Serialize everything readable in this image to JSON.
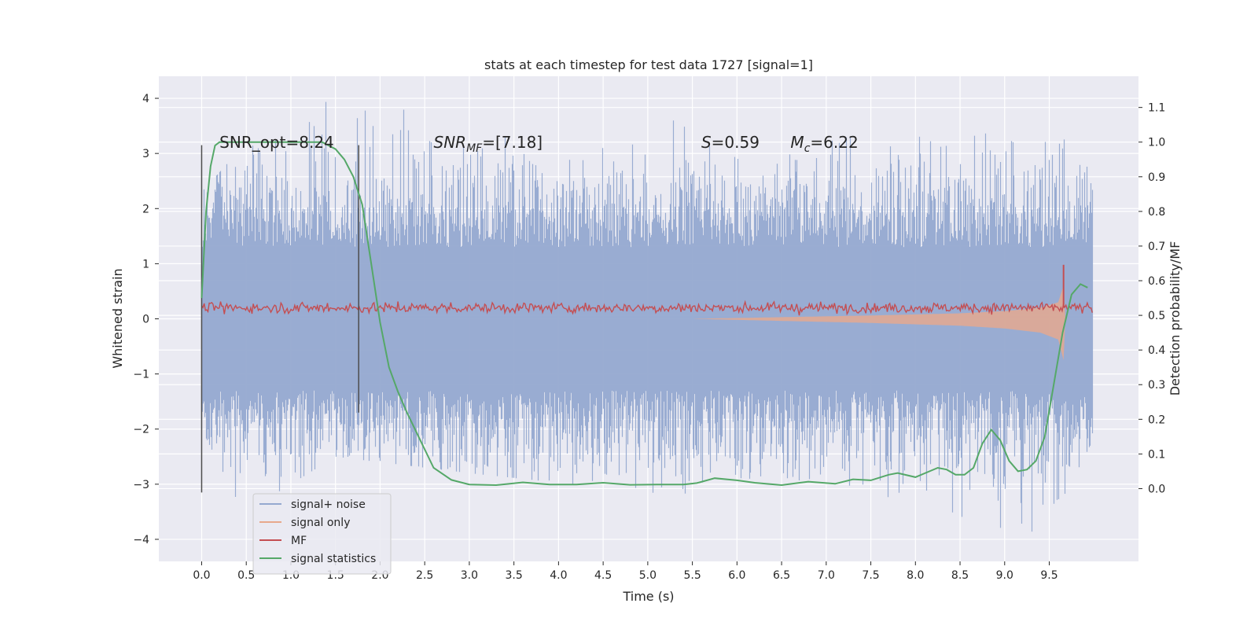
{
  "chart_data": {
    "type": "line",
    "title": "stats at each timestep for test data 1727 [signal=1]",
    "xlabel": "Time (s)",
    "ylabel": "Whitened strain",
    "y2label": "Detection probability/MF",
    "xlim": [
      -0.48,
      10.5
    ],
    "ylim": [
      -4.4,
      4.4
    ],
    "y2lim": [
      -0.21,
      1.19
    ],
    "xticks": [
      0.0,
      0.5,
      1.0,
      1.5,
      2.0,
      2.5,
      3.0,
      3.5,
      4.0,
      4.5,
      5.0,
      5.5,
      6.0,
      6.5,
      7.0,
      7.5,
      8.0,
      8.5,
      9.0,
      9.5
    ],
    "xtick_labels": [
      "0.0",
      "0.5",
      "1.0",
      "1.5",
      "2.0",
      "2.5",
      "3.0",
      "3.5",
      "4.0",
      "4.5",
      "5.0",
      "5.5",
      "6.0",
      "6.5",
      "7.0",
      "7.5",
      "8.0",
      "8.5",
      "9.0",
      "9.5"
    ],
    "yticks": [
      -4,
      -3,
      -2,
      -1,
      0,
      1,
      2,
      3,
      4
    ],
    "ytick_labels": [
      "−4",
      "−3",
      "−2",
      "−1",
      "0",
      "1",
      "2",
      "3",
      "4"
    ],
    "y2ticks": [
      0.0,
      0.1,
      0.2,
      0.3,
      0.4,
      0.5,
      0.6,
      0.7,
      0.8,
      0.9,
      1.0,
      1.1
    ],
    "y2tick_labels": [
      "0.0",
      "0.1",
      "0.2",
      "0.3",
      "0.4",
      "0.5",
      "0.6",
      "0.7",
      "0.8",
      "0.9",
      "1.0",
      "1.1"
    ],
    "grid": true,
    "legend_position": "lower-left",
    "legend": [
      {
        "label": "signal+ noise",
        "color": "#95a9d0"
      },
      {
        "label": "signal only",
        "color": "#e8a98c"
      },
      {
        "label": "MF",
        "color": "#c44e52"
      },
      {
        "label": "signal statistics",
        "color": "#55a868"
      }
    ],
    "annotations": [
      {
        "id": "snr-opt",
        "text": "SNR_opt=8.24",
        "x": 0.2,
        "y": 3.1
      },
      {
        "id": "snr-mf",
        "prefix": "SNR",
        "sub": "MF",
        "suffix": "=[7.18]",
        "x": 2.6,
        "y": 3.1
      },
      {
        "id": "s",
        "prefix": "S",
        "suffix": "=0.59",
        "x": 5.6,
        "y": 3.1
      },
      {
        "id": "mc",
        "prefix": "M",
        "sub": "c",
        "suffix": "=6.22",
        "x": 6.6,
        "y": 3.1
      }
    ],
    "vlines": [
      {
        "x": 0.0,
        "ymin": -3.15,
        "ymax": 3.15
      },
      {
        "x": 1.76,
        "ymin": -1.7,
        "ymax": 3.15
      }
    ],
    "series": [
      {
        "name": "signal+ noise",
        "kind": "noise_band",
        "color": "#95a9d0",
        "x_range": [
          0.0,
          9.99
        ],
        "typical_amplitude": 1.25,
        "upper_envelope": [
          [
            0.0,
            2.3
          ],
          [
            0.5,
            3.2
          ],
          [
            0.9,
            3.3
          ],
          [
            1.37,
            4.0
          ],
          [
            2.47,
            3.75
          ],
          [
            3.4,
            3.3
          ],
          [
            4.0,
            3.0
          ],
          [
            5.0,
            3.2
          ],
          [
            5.52,
            4.05
          ],
          [
            6.0,
            2.9
          ],
          [
            7.0,
            3.2
          ],
          [
            7.62,
            3.5
          ],
          [
            8.6,
            3.3
          ],
          [
            9.48,
            3.6
          ],
          [
            9.8,
            3.6
          ],
          [
            9.99,
            2.3
          ]
        ],
        "lower_envelope": [
          [
            0.0,
            -2.0
          ],
          [
            0.46,
            -3.5
          ],
          [
            0.8,
            -3.2
          ],
          [
            1.5,
            -2.5
          ],
          [
            3.0,
            -2.8
          ],
          [
            5.32,
            -3.2
          ],
          [
            6.0,
            -3.0
          ],
          [
            7.0,
            -2.9
          ],
          [
            8.35,
            -3.55
          ],
          [
            9.42,
            -4.0
          ],
          [
            9.99,
            -2.2
          ]
        ]
      },
      {
        "name": "signal only",
        "kind": "chirp_envelope",
        "color": "#e8a98c",
        "envelope": [
          [
            5.5,
            0.0
          ],
          [
            6.5,
            0.03
          ],
          [
            7.5,
            0.06
          ],
          [
            8.5,
            0.1
          ],
          [
            9.0,
            0.14
          ],
          [
            9.4,
            0.2
          ],
          [
            9.6,
            0.3
          ],
          [
            9.66,
            0.6
          ],
          [
            9.68,
            0.0
          ]
        ]
      },
      {
        "name": "MF",
        "kind": "band",
        "color": "#c44e52",
        "x_range": [
          0.0,
          9.99
        ],
        "center": 0.2,
        "spread": 0.12,
        "peaks": [
          [
            9.66,
            0.98
          ]
        ]
      },
      {
        "name": "signal statistics",
        "axis": "right",
        "color": "#55a868",
        "points": [
          [
            0.0,
            0.55
          ],
          [
            0.05,
            0.8
          ],
          [
            0.1,
            0.93
          ],
          [
            0.15,
            0.99
          ],
          [
            0.2,
            1.0
          ],
          [
            1.0,
            1.0
          ],
          [
            1.35,
            1.0
          ],
          [
            1.5,
            0.98
          ],
          [
            1.6,
            0.95
          ],
          [
            1.7,
            0.9
          ],
          [
            1.8,
            0.82
          ],
          [
            1.9,
            0.65
          ],
          [
            2.0,
            0.48
          ],
          [
            2.1,
            0.35
          ],
          [
            2.2,
            0.28
          ],
          [
            2.3,
            0.22
          ],
          [
            2.45,
            0.14
          ],
          [
            2.6,
            0.06
          ],
          [
            2.8,
            0.025
          ],
          [
            3.0,
            0.012
          ],
          [
            3.3,
            0.01
          ],
          [
            3.6,
            0.018
          ],
          [
            3.9,
            0.012
          ],
          [
            4.2,
            0.012
          ],
          [
            4.5,
            0.017
          ],
          [
            4.8,
            0.011
          ],
          [
            5.1,
            0.012
          ],
          [
            5.4,
            0.012
          ],
          [
            5.55,
            0.016
          ],
          [
            5.75,
            0.03
          ],
          [
            6.0,
            0.024
          ],
          [
            6.2,
            0.017
          ],
          [
            6.5,
            0.01
          ],
          [
            6.8,
            0.02
          ],
          [
            7.1,
            0.014
          ],
          [
            7.3,
            0.027
          ],
          [
            7.5,
            0.024
          ],
          [
            7.7,
            0.04
          ],
          [
            7.8,
            0.045
          ],
          [
            8.0,
            0.033
          ],
          [
            8.25,
            0.06
          ],
          [
            8.35,
            0.055
          ],
          [
            8.45,
            0.04
          ],
          [
            8.55,
            0.04
          ],
          [
            8.65,
            0.06
          ],
          [
            8.75,
            0.13
          ],
          [
            8.85,
            0.17
          ],
          [
            8.95,
            0.14
          ],
          [
            9.05,
            0.08
          ],
          [
            9.15,
            0.05
          ],
          [
            9.25,
            0.055
          ],
          [
            9.35,
            0.08
          ],
          [
            9.45,
            0.15
          ],
          [
            9.55,
            0.3
          ],
          [
            9.65,
            0.45
          ],
          [
            9.75,
            0.56
          ],
          [
            9.85,
            0.59
          ],
          [
            9.93,
            0.58
          ]
        ]
      }
    ]
  }
}
